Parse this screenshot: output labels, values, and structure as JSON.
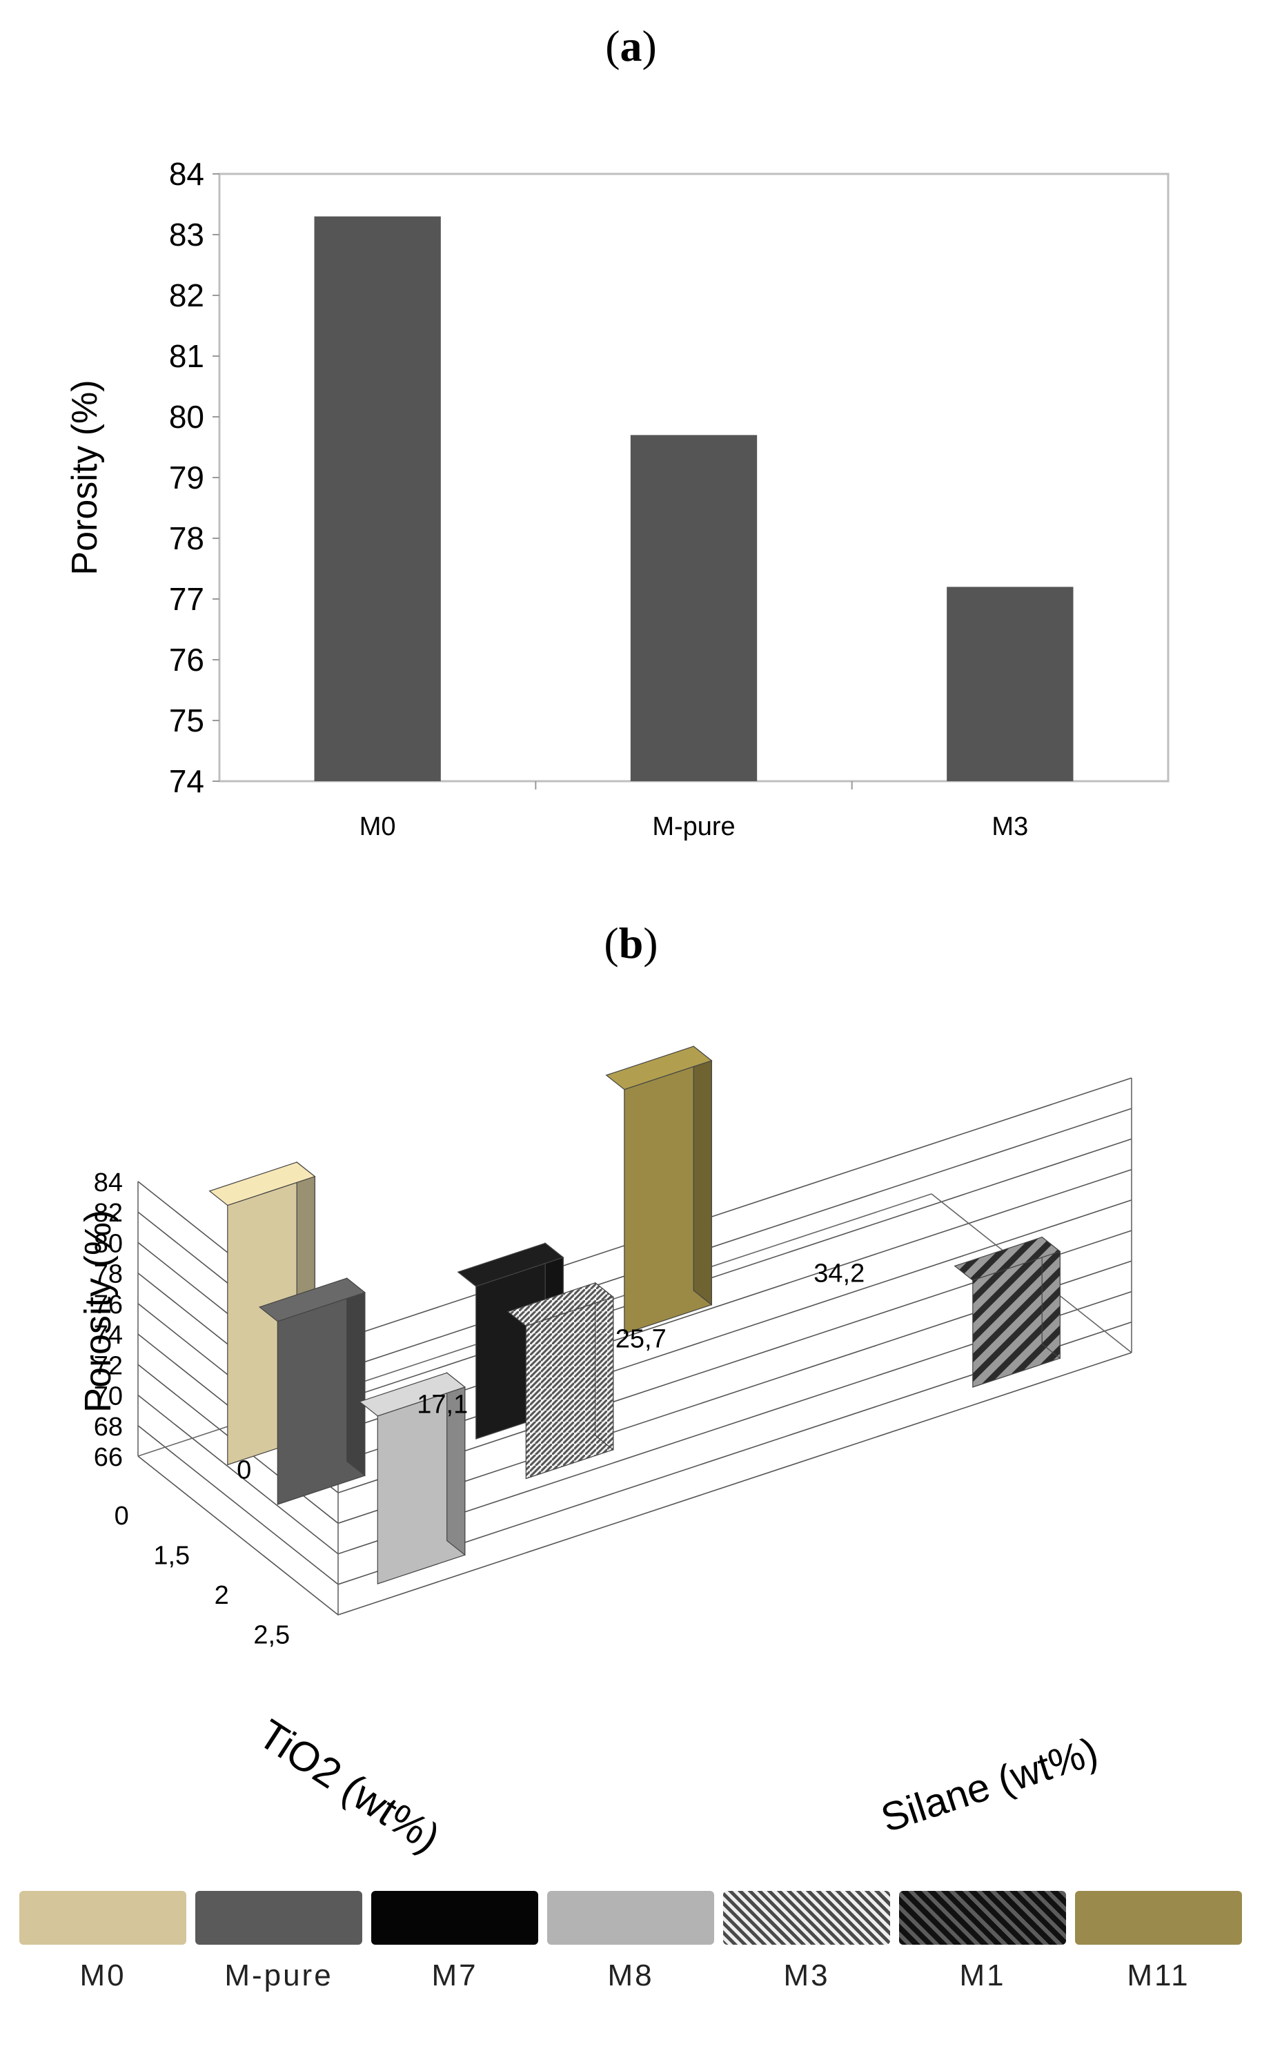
{
  "panel_a_label": "a",
  "panel_b_label": "b",
  "chart_data": [
    {
      "type": "bar",
      "title": "",
      "xlabel": "",
      "ylabel": "Porosity (%)",
      "ylim": [
        74,
        84
      ],
      "yticks": [
        74,
        75,
        76,
        77,
        78,
        79,
        80,
        81,
        82,
        83,
        84
      ],
      "categories": [
        "M0",
        "M-pure",
        "M3"
      ],
      "values": [
        83.3,
        79.7,
        77.2
      ],
      "grid": false,
      "bar_color": "#555555"
    },
    {
      "type": "bar",
      "title": "",
      "ylabel": "Porosity  (%)",
      "xlabel": "TiO2 (wt%)",
      "zlabel": "Silane (wt%)",
      "zlim": [
        66,
        84
      ],
      "zticks": [
        66,
        68,
        70,
        72,
        74,
        76,
        78,
        80,
        82,
        84
      ],
      "tio2_ticks": [
        "0",
        "1,5",
        "2",
        "2,5"
      ],
      "silane_ticks": [
        "0",
        "17,1",
        "25,7",
        "34,2"
      ],
      "grid": true,
      "series": [
        {
          "name": "M0",
          "tio2": "0",
          "silane": "0",
          "value": 83.0,
          "color": "#d6c99e"
        },
        {
          "name": "M-pure",
          "tio2": "1,5",
          "silane": "0",
          "value": 78.0,
          "color": "#5b5b5b"
        },
        {
          "name": "M7",
          "tio2": "1,5",
          "silane": "17,1",
          "value": 76.0,
          "color": "#1a1a1a"
        },
        {
          "name": "M8",
          "tio2": "2,5",
          "silane": "0",
          "value": 77.0,
          "color": "#bdbdbd"
        },
        {
          "name": "M3",
          "tio2": "2",
          "silane": "17,1",
          "value": 76.0,
          "color": "#9a9a9a"
        },
        {
          "name": "M1",
          "tio2": "2,5",
          "silane": "34,2",
          "value": 73.0,
          "color": "#333333"
        },
        {
          "name": "M11",
          "tio2": "0",
          "silane": "25,7",
          "value": 82.0,
          "color": "#9a8a45"
        }
      ],
      "legend": [
        {
          "name": "M0",
          "color": "#d4c59b"
        },
        {
          "name": "M-pure",
          "color": "#5a5a5a"
        },
        {
          "name": "M7",
          "color": "#050505"
        },
        {
          "name": "M8",
          "color": "#b3b3b3"
        },
        {
          "name": "M3",
          "color": "#777777"
        },
        {
          "name": "M1",
          "color": "#111111"
        },
        {
          "name": "M11",
          "color": "#9a8a4c"
        }
      ]
    }
  ]
}
